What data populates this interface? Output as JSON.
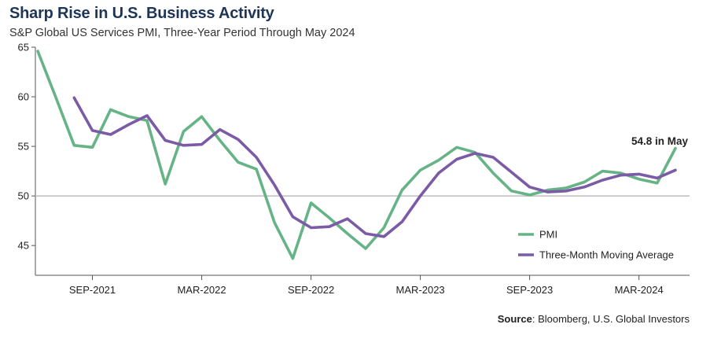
{
  "title": "Sharp Rise in U.S. Business Activity",
  "subtitle": "S&P Global US Services PMI, Three-Year Period Through May 2024",
  "source_label": "Source",
  "source_text": ": Bloomberg, U.S. Global Investors",
  "colors": {
    "pmi": "#66b386",
    "ma": "#7b5aa6",
    "axis": "#555555",
    "refline": "#bdbdbd"
  },
  "chart_data": {
    "type": "line",
    "title": "Sharp Rise in U.S. Business Activity",
    "xlabel": "",
    "ylabel": "",
    "ylim": [
      42,
      65
    ],
    "yticks": [
      45,
      50,
      55,
      60,
      65
    ],
    "reference_line": 50,
    "x": [
      "Jun-2021",
      "Jul-2021",
      "Aug-2021",
      "Sep-2021",
      "Oct-2021",
      "Nov-2021",
      "Dec-2021",
      "Jan-2022",
      "Feb-2022",
      "Mar-2022",
      "Apr-2022",
      "May-2022",
      "Jun-2022",
      "Jul-2022",
      "Aug-2022",
      "Sep-2022",
      "Oct-2022",
      "Nov-2022",
      "Dec-2022",
      "Jan-2023",
      "Feb-2023",
      "Mar-2023",
      "Apr-2023",
      "May-2023",
      "Jun-2023",
      "Jul-2023",
      "Aug-2023",
      "Sep-2023",
      "Oct-2023",
      "Nov-2023",
      "Dec-2023",
      "Jan-2024",
      "Feb-2024",
      "Mar-2024",
      "Apr-2024",
      "May-2024"
    ],
    "xtick_labels": [
      {
        "index": 3,
        "label": "SEP-2021"
      },
      {
        "index": 9,
        "label": "MAR-2022"
      },
      {
        "index": 15,
        "label": "SEP-2022"
      },
      {
        "index": 21,
        "label": "MAR-2023"
      },
      {
        "index": 27,
        "label": "SEP-2023"
      },
      {
        "index": 33,
        "label": "MAR-2024"
      }
    ],
    "series": [
      {
        "name": "PMI",
        "color": "#66b386",
        "values": [
          64.6,
          59.9,
          55.1,
          54.9,
          58.7,
          58.0,
          57.6,
          51.2,
          56.5,
          58.0,
          55.6,
          53.4,
          52.7,
          47.3,
          43.7,
          49.3,
          47.8,
          46.2,
          44.7,
          46.8,
          50.6,
          52.6,
          53.6,
          54.9,
          54.4,
          52.3,
          50.5,
          50.1,
          50.6,
          50.8,
          51.4,
          52.5,
          52.3,
          51.7,
          51.3,
          54.8
        ]
      },
      {
        "name": "Three-Month Moving Average",
        "color": "#7b5aa6",
        "values": [
          null,
          null,
          59.9,
          56.6,
          56.2,
          57.2,
          58.1,
          55.6,
          55.1,
          55.2,
          56.7,
          55.7,
          53.9,
          51.1,
          47.9,
          46.8,
          46.9,
          47.7,
          46.2,
          45.9,
          47.4,
          50.0,
          52.3,
          53.7,
          54.3,
          53.9,
          52.4,
          50.9,
          50.4,
          50.5,
          50.9,
          51.6,
          52.1,
          52.2,
          51.8,
          52.6
        ]
      }
    ],
    "legend": {
      "placement": "bottom-right",
      "entries": [
        "PMI",
        "Three-Month Moving Average"
      ]
    },
    "annotations": [
      {
        "text": "54.8 in May",
        "series": "PMI",
        "index": 35
      }
    ],
    "grid": false
  }
}
